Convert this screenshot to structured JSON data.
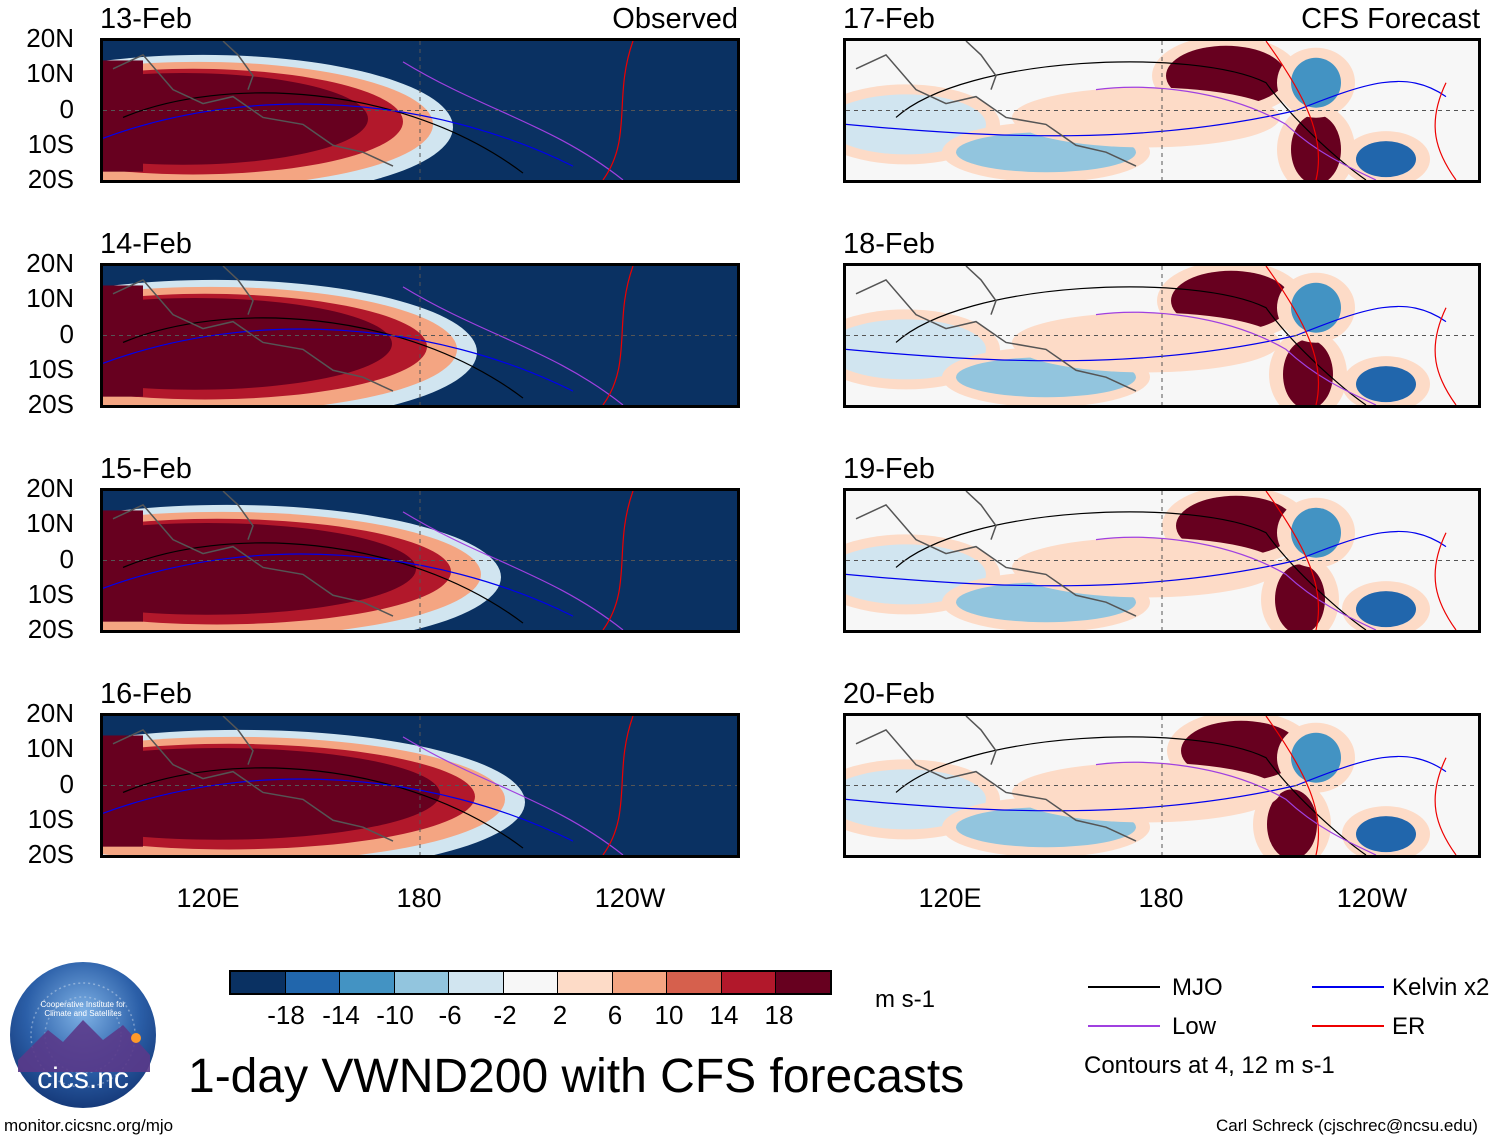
{
  "observed_title": "Observed",
  "forecast_title": "CFS Forecast",
  "lat_labels": [
    "20N",
    "10N",
    "0",
    "10S",
    "20S"
  ],
  "lon_labels": [
    "120E",
    "180",
    "120W"
  ],
  "panels_left": [
    {
      "date": "13-Feb",
      "phase": 0
    },
    {
      "date": "14-Feb",
      "phase": 1
    },
    {
      "date": "15-Feb",
      "phase": 2
    },
    {
      "date": "16-Feb",
      "phase": 3
    }
  ],
  "panels_right": [
    {
      "date": "17-Feb",
      "phase": 0
    },
    {
      "date": "18-Feb",
      "phase": 1
    },
    {
      "date": "19-Feb",
      "phase": 2
    },
    {
      "date": "20-Feb",
      "phase": 3
    }
  ],
  "colorbar": {
    "colors": [
      "#0a3162",
      "#2166ac",
      "#4393c3",
      "#92c5de",
      "#d1e5f0",
      "#f7f7f7",
      "#fddbc7",
      "#f4a582",
      "#d6604d",
      "#b2182b",
      "#67001f"
    ],
    "tick_labels": [
      "-18",
      "-14",
      "-10",
      "-6",
      "-2",
      "2",
      "6",
      "10",
      "14",
      "18"
    ],
    "units": "m s-1"
  },
  "legend": {
    "items": [
      {
        "label": "MJO",
        "color": "#000000"
      },
      {
        "label": "Kelvin x2",
        "color": "#0000ee"
      },
      {
        "label": "Low",
        "color": "#a040e0"
      },
      {
        "label": "ER",
        "color": "#ee0000"
      }
    ],
    "note": "Contours at 4, 12 m s-1"
  },
  "logo_text": "cics.nc",
  "logo_ring_text": "Cooperative Institute for Climate and Satellites",
  "main_title": "1-day VWND200 with CFS forecasts",
  "credit_left": "monitor.cicsnc.org/mjo",
  "credit_right": "Carl Schreck (cjschrec@ncsu.edu)",
  "chart_data": {
    "type": "heatmap",
    "title": "1-day VWND200 with CFS forecasts",
    "variable": "VWND200",
    "units": "m s-1",
    "columns": [
      "Observed",
      "CFS Forecast"
    ],
    "dates_observed": [
      "13-Feb",
      "14-Feb",
      "15-Feb",
      "16-Feb"
    ],
    "dates_forecast": [
      "17-Feb",
      "18-Feb",
      "19-Feb",
      "20-Feb"
    ],
    "lat_range": [
      -20,
      20
    ],
    "lat_ticks": [
      "20N",
      "10N",
      "0",
      "10S",
      "20S"
    ],
    "lon_ticks": [
      "120E",
      "180",
      "120W"
    ],
    "color_levels": [
      -18,
      -14,
      -10,
      -6,
      -2,
      2,
      6,
      10,
      14,
      18
    ],
    "contour_levels": [
      4,
      12
    ],
    "contour_series": [
      "MJO",
      "Kelvin x2",
      "Low",
      "ER"
    ]
  }
}
